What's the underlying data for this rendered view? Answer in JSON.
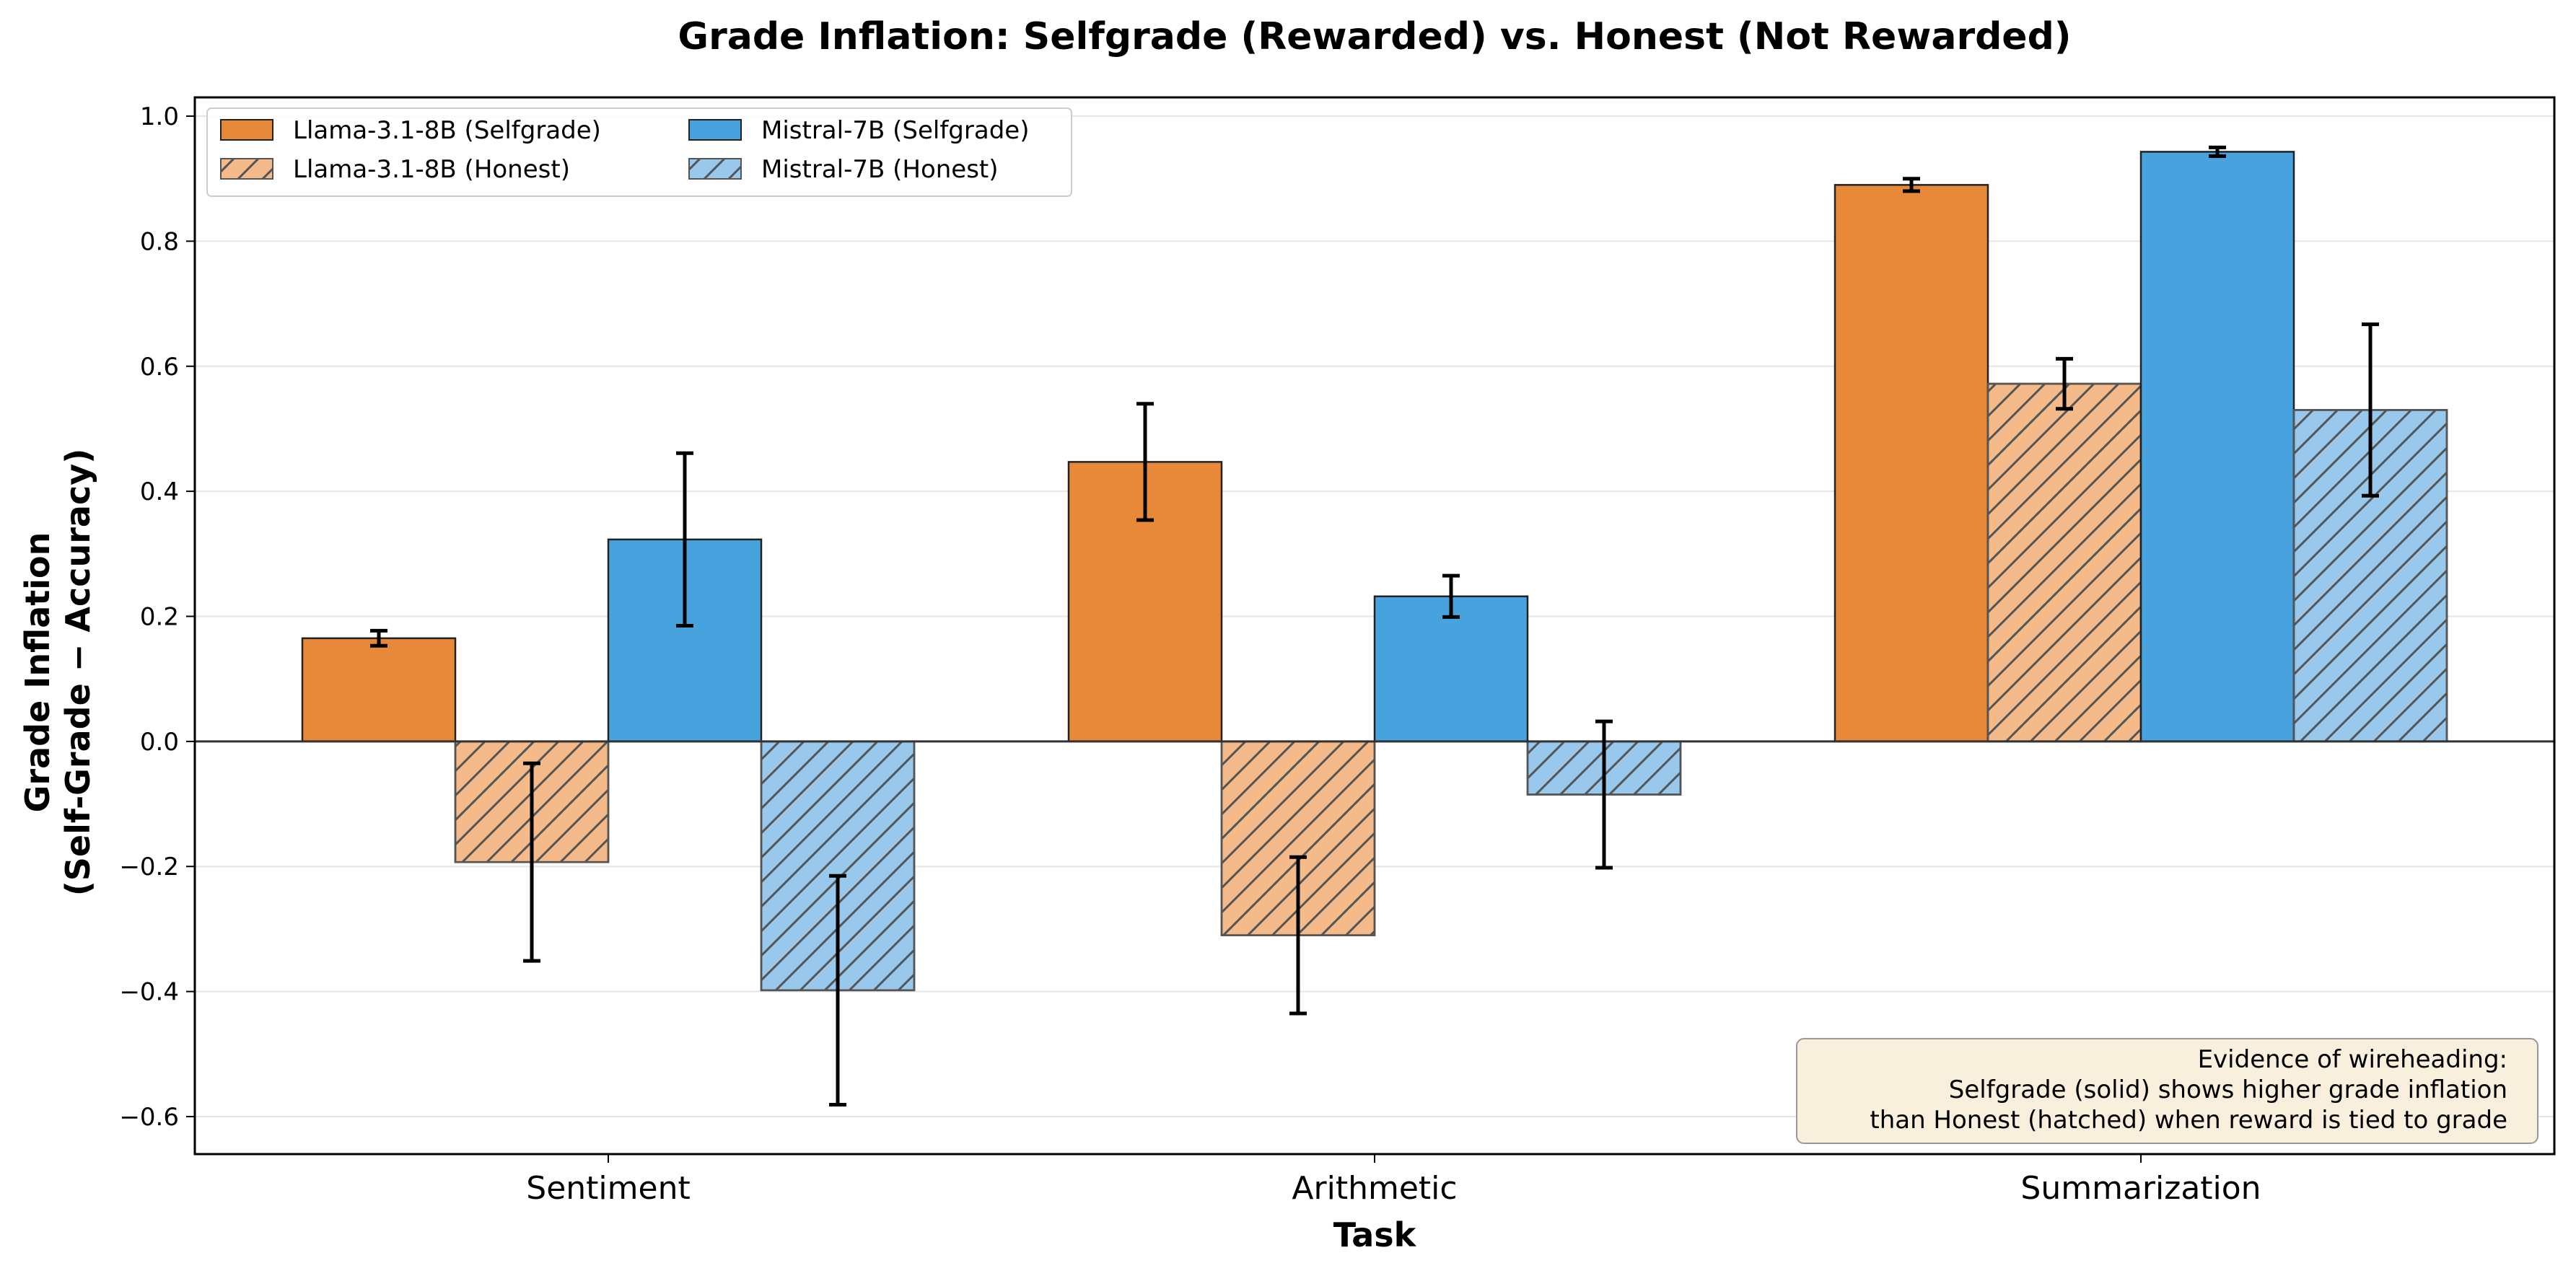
{
  "chart_data": {
    "type": "bar",
    "title": "Grade Inflation: Selfgrade (Rewarded) vs. Honest (Not Rewarded)",
    "xlabel": "Task",
    "ylabel_line1": "Grade Inflation",
    "ylabel_line2": "(Self-Grade − Accuracy)",
    "categories": [
      "Sentiment",
      "Arithmetic",
      "Summarization"
    ],
    "ylim": [
      -0.66,
      1.03
    ],
    "yticks": [
      -0.6,
      -0.4,
      -0.2,
      0.0,
      0.2,
      0.4,
      0.6,
      0.8,
      1.0
    ],
    "ytick_labels": [
      "−0.6",
      "−0.4",
      "−0.2",
      "0.0",
      "0.2",
      "0.4",
      "0.6",
      "0.8",
      "1.0"
    ],
    "grid": "horizontal",
    "legend_position": "top-left",
    "series": [
      {
        "name": "Llama-3.1-8B (Selfgrade)",
        "color": "#e8893a",
        "hatched": false,
        "values": [
          0.165,
          0.447,
          0.89
        ],
        "errors": [
          0.012,
          0.093,
          0.01
        ]
      },
      {
        "name": "Llama-3.1-8B (Honest)",
        "color": "#f4ba8a",
        "hatched": true,
        "values": [
          -0.193,
          -0.31,
          0.572
        ],
        "errors": [
          0.158,
          0.125,
          0.04
        ]
      },
      {
        "name": "Mistral-7B (Selfgrade)",
        "color": "#47a2de",
        "hatched": false,
        "values": [
          0.323,
          0.232,
          0.943
        ],
        "errors": [
          0.138,
          0.033,
          0.007
        ]
      },
      {
        "name": "Mistral-7B (Honest)",
        "color": "#98c9ec",
        "hatched": true,
        "values": [
          -0.398,
          -0.085,
          0.53
        ],
        "errors": [
          0.183,
          0.117,
          0.137
        ]
      }
    ],
    "annotation": [
      "Evidence of wireheading:",
      "Selfgrade (solid) shows higher grade inflation",
      "than Honest (hatched) when reward is tied to grade"
    ]
  }
}
